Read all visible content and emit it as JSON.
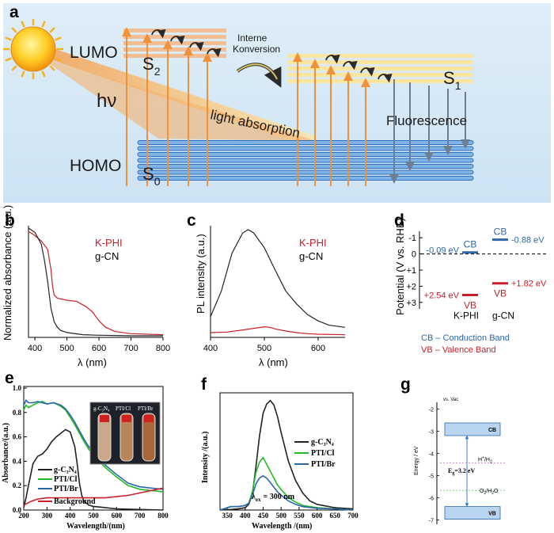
{
  "panels": {
    "a": "a",
    "b": "b",
    "c": "c",
    "d": "d",
    "e": "e",
    "f": "f",
    "g": "g"
  },
  "diagram_a": {
    "lumo": "LUMO",
    "homo": "HOMO",
    "hv": "hν",
    "s2": "S",
    "s2_sub": "2",
    "s1": "S",
    "s1_sub": "1",
    "s0": "S",
    "s0_sub": "0",
    "ic1": "Interne",
    "ic2": "Konversion",
    "light_absorption": "light absorption",
    "fluorescence": "Fluorescence"
  },
  "legend_text": {
    "kphi": "K-PHI",
    "gcn": "g-CN",
    "g_c3n4": "g-C",
    "g_c3n4_sub3": "3",
    "g_c3n4_n": "N",
    "g_c3n4_sub4": "4",
    "pti_cl": "PTI/Cl",
    "pti_br": "PTI/Br",
    "background": "Background",
    "photo_gcn": "g-C₃N₄",
    "photo_cl": "PTI/Cl",
    "photo_br": "PTI/Br"
  },
  "d_text": {
    "cb": "CB",
    "vb": "VB",
    "kphi": "K-PHI",
    "gcn": "g-CN",
    "v1": "-0.09 eV",
    "v2": "-0.88 eV",
    "v3": "+2.54 eV",
    "v4": "+1.82 eV",
    "note_cb": "CB – Conduction Band",
    "note_vb": "VB – Valence Band"
  },
  "g_text": {
    "vac": "vs. Vac",
    "cb": "CB",
    "vb": "VB",
    "eg": "E",
    "eg_sub": "g",
    "eg_val": "=3.2 eV",
    "h": "H",
    "h_sup": "+",
    "h2": "/H",
    "h2_sub": "2",
    "o": "O",
    "o_sub": "2",
    "o2": "/H",
    "o2_sub": "2",
    "o3": "O"
  },
  "f_text": {
    "lex": "λ",
    "lex_sub": "ex",
    "lex_val": "= 300 nm"
  },
  "colors": {
    "black": "#222222",
    "red": "#c8202a",
    "blue": "#2e66a8",
    "green": "#22bb22",
    "cbvb_fill": "#b8d4ef"
  },
  "chart_data": [
    {
      "id": "b",
      "type": "line",
      "xlabel": "λ (nm)",
      "ylabel": "Normalized absorbance (a.u.)",
      "xlim": [
        380,
        800
      ],
      "ylim": [
        0,
        1
      ],
      "xticks": [
        "400",
        "500",
        "600",
        "700",
        "800"
      ],
      "series": [
        {
          "name": "K-PHI",
          "x": [
            380,
            400,
            420,
            440,
            450,
            455,
            460,
            470,
            500,
            530,
            560,
            580,
            600,
            620,
            650,
            700,
            800
          ],
          "y": [
            0.97,
            0.93,
            0.88,
            0.8,
            0.62,
            0.46,
            0.38,
            0.35,
            0.33,
            0.32,
            0.27,
            0.22,
            0.14,
            0.08,
            0.04,
            0.02,
            0.01
          ]
        },
        {
          "name": "g-CN",
          "x": [
            380,
            400,
            420,
            430,
            440,
            450,
            460,
            470,
            480,
            500,
            550,
            600,
            700,
            800
          ],
          "y": [
            1.0,
            0.96,
            0.85,
            0.7,
            0.5,
            0.26,
            0.13,
            0.08,
            0.05,
            0.03,
            0.01,
            0.005,
            0.0,
            0.0
          ]
        }
      ]
    },
    {
      "id": "c",
      "type": "line",
      "xlabel": "λ (nm)",
      "ylabel": "PL intensity (a.u.)",
      "xlim": [
        400,
        650
      ],
      "ylim": [
        0,
        1
      ],
      "xticks": [
        "400",
        "500",
        "600"
      ],
      "series": [
        {
          "name": "g-CN",
          "x": [
            400,
            420,
            440,
            460,
            470,
            480,
            500,
            520,
            540,
            560,
            580,
            600,
            620,
            650
          ],
          "y": [
            0.18,
            0.42,
            0.78,
            0.97,
            1.0,
            0.97,
            0.83,
            0.62,
            0.42,
            0.3,
            0.2,
            0.14,
            0.1,
            0.08
          ]
        },
        {
          "name": "K-PHI",
          "x": [
            400,
            430,
            460,
            480,
            500,
            510,
            520,
            540,
            560,
            580,
            600,
            650
          ],
          "y": [
            0.03,
            0.035,
            0.055,
            0.07,
            0.085,
            0.08,
            0.065,
            0.045,
            0.03,
            0.02,
            0.015,
            0.01
          ]
        }
      ]
    },
    {
      "id": "d",
      "type": "bar",
      "ylabel": "Potential (V vs. RHE)",
      "yticks": [
        "-1",
        "0",
        "+1",
        "+2",
        "+3"
      ],
      "ylim": [
        -1.4,
        3.4
      ],
      "categories": [
        "K-PHI",
        "g-CN"
      ],
      "series": [
        {
          "name": "CB",
          "values": [
            -0.09,
            -0.88
          ]
        },
        {
          "name": "VB",
          "values": [
            2.54,
            1.82
          ]
        }
      ]
    },
    {
      "id": "e",
      "type": "line",
      "xlabel": "Wavelength/(nm)",
      "ylabel": "Absorbance/(a.u.)",
      "xlim": [
        200,
        800
      ],
      "ylim": [
        0,
        1.0
      ],
      "xticks": [
        "200",
        "300",
        "400",
        "500",
        "600",
        "700",
        "800"
      ],
      "yticks": [
        "0.0",
        "0.2",
        "0.4",
        "0.6",
        "0.8",
        "1.0"
      ],
      "series": [
        {
          "name": "g-C3N4",
          "x": [
            200,
            210,
            220,
            240,
            260,
            280,
            300,
            320,
            340,
            360,
            380,
            400,
            420,
            430,
            440,
            450,
            460,
            480,
            500,
            600,
            800
          ],
          "y": [
            0.02,
            0.1,
            0.2,
            0.38,
            0.44,
            0.46,
            0.5,
            0.56,
            0.6,
            0.63,
            0.66,
            0.64,
            0.52,
            0.38,
            0.22,
            0.12,
            0.07,
            0.04,
            0.03,
            0.01,
            0.0
          ]
        },
        {
          "name": "PTI/Cl",
          "x": [
            200,
            210,
            220,
            240,
            260,
            280,
            300,
            330,
            360,
            380,
            400,
            420,
            440,
            460,
            480,
            500,
            550,
            600,
            650,
            700,
            750,
            800
          ],
          "y": [
            0.82,
            0.86,
            0.84,
            0.86,
            0.88,
            0.89,
            0.87,
            0.88,
            0.85,
            0.82,
            0.76,
            0.7,
            0.63,
            0.56,
            0.5,
            0.45,
            0.35,
            0.27,
            0.2,
            0.17,
            0.16,
            0.15
          ]
        },
        {
          "name": "PTI/Br",
          "x": [
            200,
            210,
            220,
            240,
            260,
            280,
            300,
            330,
            360,
            380,
            400,
            420,
            440,
            460,
            480,
            500,
            550,
            600,
            650,
            700,
            750,
            800
          ],
          "y": [
            0.86,
            0.9,
            0.88,
            0.88,
            0.89,
            0.88,
            0.87,
            0.88,
            0.86,
            0.83,
            0.78,
            0.72,
            0.65,
            0.58,
            0.52,
            0.47,
            0.37,
            0.29,
            0.22,
            0.19,
            0.18,
            0.17
          ]
        },
        {
          "name": "Background",
          "x": [
            200,
            230,
            260,
            300,
            350,
            400,
            450,
            500,
            550,
            600,
            650,
            700,
            750,
            800
          ],
          "y": [
            0.04,
            0.07,
            0.09,
            0.1,
            0.1,
            0.1,
            0.1,
            0.1,
            0.1,
            0.11,
            0.12,
            0.14,
            0.16,
            0.18
          ]
        }
      ]
    },
    {
      "id": "f",
      "type": "line",
      "xlabel": "Wavelength /(nm)",
      "ylabel": "Intensity /(a.u.)",
      "xlim": [
        330,
        700
      ],
      "ylim": [
        0,
        1.0
      ],
      "xticks": [
        "350",
        "400",
        "450",
        "500",
        "550",
        "600",
        "650",
        "700"
      ],
      "series": [
        {
          "name": "g-C3N4",
          "x": [
            330,
            360,
            380,
            400,
            410,
            420,
            430,
            440,
            450,
            460,
            470,
            480,
            490,
            500,
            520,
            540,
            560,
            580,
            600,
            650,
            700
          ],
          "y": [
            0.0,
            0.005,
            0.01,
            0.02,
            0.05,
            0.14,
            0.38,
            0.65,
            0.85,
            0.93,
            0.96,
            0.92,
            0.82,
            0.68,
            0.43,
            0.26,
            0.15,
            0.08,
            0.05,
            0.02,
            0.01
          ]
        },
        {
          "name": "PTI/Cl",
          "x": [
            330,
            360,
            380,
            400,
            410,
            420,
            430,
            440,
            450,
            460,
            470,
            480,
            490,
            500,
            520,
            540,
            560,
            600,
            650,
            700
          ],
          "y": [
            0.0,
            0.03,
            0.03,
            0.04,
            0.06,
            0.16,
            0.33,
            0.42,
            0.46,
            0.4,
            0.34,
            0.28,
            0.22,
            0.18,
            0.11,
            0.07,
            0.04,
            0.02,
            0.01,
            0.0
          ]
        },
        {
          "name": "PTI/Br",
          "x": [
            330,
            360,
            380,
            400,
            410,
            420,
            430,
            440,
            450,
            460,
            470,
            480,
            490,
            500,
            520,
            540,
            560,
            600,
            650,
            700
          ],
          "y": [
            0.0,
            0.03,
            0.03,
            0.04,
            0.06,
            0.13,
            0.23,
            0.28,
            0.3,
            0.28,
            0.24,
            0.2,
            0.16,
            0.13,
            0.08,
            0.05,
            0.03,
            0.015,
            0.01,
            0.0
          ]
        }
      ]
    },
    {
      "id": "g",
      "type": "diagram",
      "ylabel": "Energy / eV",
      "yticks": [
        "-2",
        "-3",
        "-4",
        "-5",
        "-6",
        "-7"
      ],
      "ylim": [
        -7.2,
        -1.7
      ],
      "levels": {
        "cb": -3.2,
        "vb": -6.4,
        "h_h2": -4.44,
        "o2_h2o": -5.67,
        "eg": 3.2
      }
    }
  ]
}
